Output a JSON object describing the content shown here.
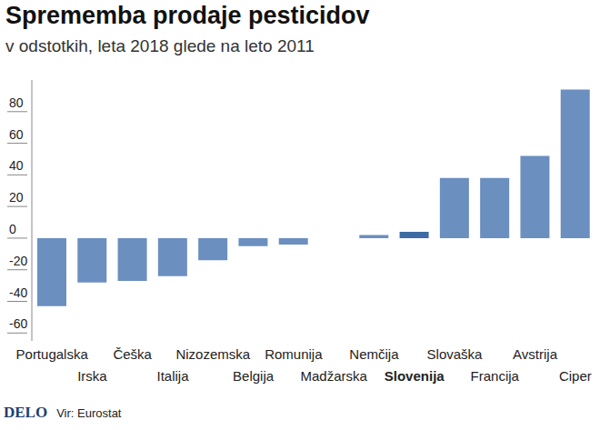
{
  "chart_data": {
    "type": "bar",
    "title": "Sprememba prodaje pesticidov",
    "subtitle": "v odstotkih, leta 2018 glede na leto 2011",
    "categories": [
      "Portugalska",
      "Irska",
      "Češka",
      "Italija",
      "Nizozemska",
      "Belgija",
      "Romunija",
      "Madžarska",
      "Nemčija",
      "Slovenija",
      "Slovaška",
      "Francija",
      "Avstrija",
      "Ciper"
    ],
    "values": [
      -43,
      -28,
      -27,
      -24,
      -14,
      -5,
      -4,
      0,
      2,
      4,
      38,
      38,
      52,
      94
    ],
    "color": "#6b8fbf",
    "colors": [
      "#6b8fbf",
      "#6b8fbf",
      "#6b8fbf",
      "#6b8fbf",
      "#6b8fbf",
      "#6b8fbf",
      "#6b8fbf",
      "#6b8fbf",
      "#6b8fbf",
      "#3f6ba3",
      "#6b8fbf",
      "#6b8fbf",
      "#6b8fbf",
      "#6b8fbf"
    ],
    "ylim": [
      -65,
      100
    ],
    "yticks": [
      -60,
      -40,
      -20,
      0,
      20,
      40,
      60,
      80
    ],
    "grid": false,
    "logo": "DELO",
    "source": "Vir: Eurostat"
  }
}
